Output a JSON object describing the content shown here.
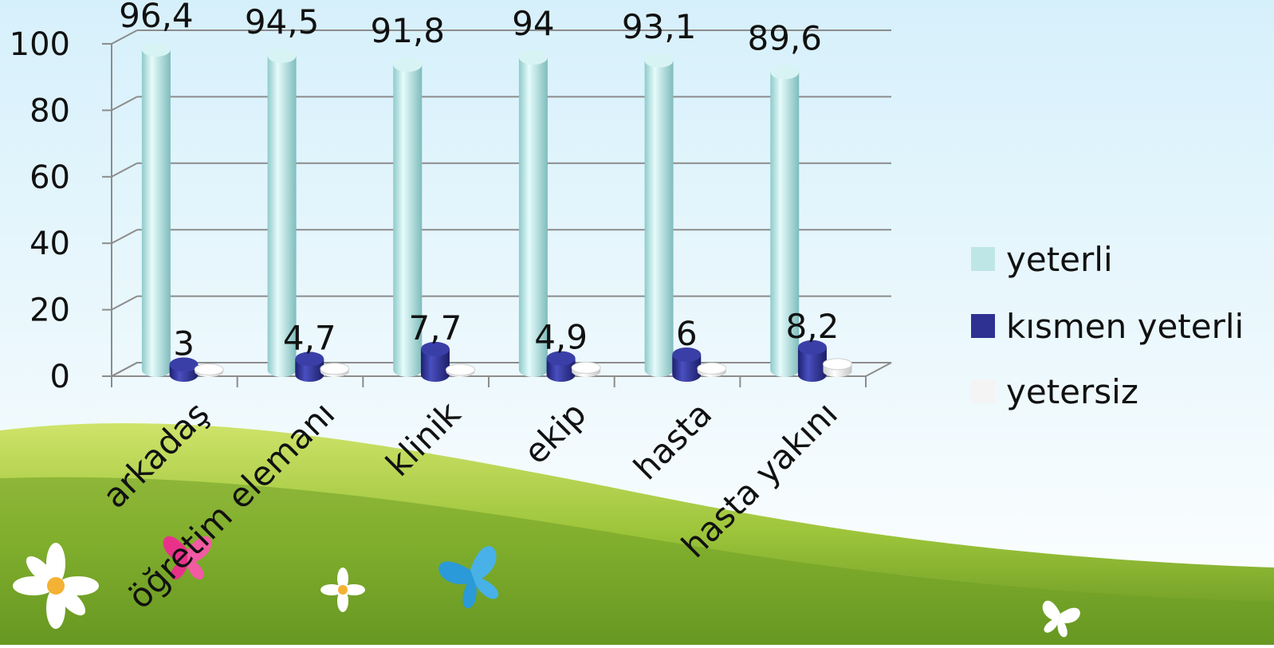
{
  "chart_data": {
    "type": "bar",
    "categories": [
      "arkadaş",
      "öğretim elemanı",
      "klinik",
      "ekip",
      "hasta",
      "hasta yakını"
    ],
    "series": [
      {
        "name": "yeterli",
        "values": [
          96.4,
          94.5,
          91.8,
          94,
          93.1,
          89.6
        ],
        "labels": [
          "96,4",
          "94,5",
          "91,8",
          "94",
          "93,1",
          "89,6"
        ],
        "color": "#bfe6e6"
      },
      {
        "name": "kısmen yeterli",
        "values": [
          3,
          4.7,
          7.7,
          4.9,
          6,
          8.2
        ],
        "labels": [
          "3",
          "4,7",
          "7,7",
          "4,9",
          "6",
          "8,2"
        ],
        "color": "#2e3192"
      },
      {
        "name": "yetersiz",
        "values": [
          0.6,
          0.8,
          0.5,
          1.1,
          0.9,
          2.2
        ],
        "labels": [
          "",
          "",
          "",
          "",
          "",
          ""
        ],
        "color": "#f4f4f4"
      }
    ],
    "yticks": [
      "0",
      "20",
      "40",
      "60",
      "80",
      "100"
    ],
    "ylim": [
      0,
      100
    ],
    "grid": true,
    "legend": "right",
    "style": "3d-cylinder"
  }
}
